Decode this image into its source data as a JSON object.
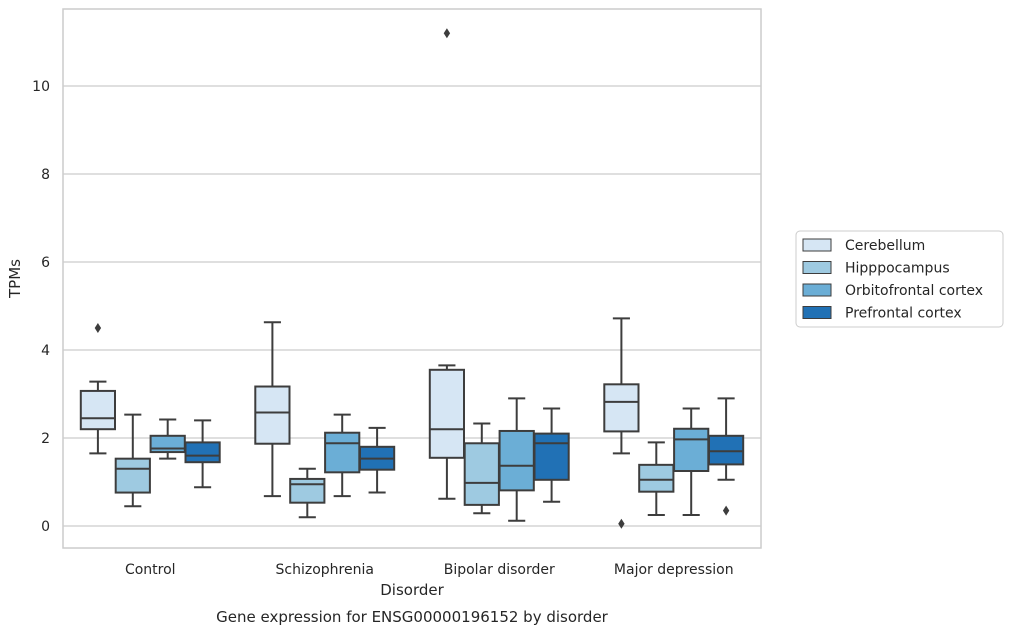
{
  "chart_data": {
    "type": "box",
    "caption": "Gene expression for ENSG00000196152 by disorder",
    "xlabel": "Disorder",
    "ylabel": "TPMs",
    "ylim": [
      -0.5,
      11.75
    ],
    "yticks": [
      0,
      2,
      4,
      6,
      8,
      10
    ],
    "grid": "horizontal",
    "legend_position": "right",
    "categories": [
      "Control",
      "Schizophrenia",
      "Bipolar disorder",
      "Major depression"
    ],
    "series": [
      {
        "name": "Cerebellum",
        "color": "#d6e6f4",
        "boxes": [
          {
            "whislo": 1.65,
            "q1": 2.2,
            "med": 2.45,
            "q3": 3.07,
            "whishi": 3.28,
            "fliers": [
              4.5
            ]
          },
          {
            "whislo": 0.68,
            "q1": 1.87,
            "med": 2.58,
            "q3": 3.17,
            "whishi": 4.63,
            "fliers": []
          },
          {
            "whislo": 0.62,
            "q1": 1.55,
            "med": 2.2,
            "q3": 3.55,
            "whishi": 3.65,
            "fliers": [
              11.2
            ]
          },
          {
            "whislo": 1.65,
            "q1": 2.15,
            "med": 2.82,
            "q3": 3.22,
            "whishi": 4.72,
            "fliers": []
          }
        ]
      },
      {
        "name": "Hipppocampus",
        "color": "#9ecae1",
        "boxes": [
          {
            "whislo": 0.45,
            "q1": 0.76,
            "med": 1.3,
            "q3": 1.53,
            "whishi": 2.53,
            "fliers": []
          },
          {
            "whislo": 0.2,
            "q1": 0.53,
            "med": 0.95,
            "q3": 1.07,
            "whishi": 1.3,
            "fliers": []
          },
          {
            "whislo": 0.29,
            "q1": 0.48,
            "med": 0.98,
            "q3": 1.88,
            "whishi": 2.33,
            "fliers": []
          },
          {
            "whislo": 0.25,
            "q1": 0.78,
            "med": 1.05,
            "q3": 1.39,
            "whishi": 1.9,
            "fliers": []
          }
        ]
      },
      {
        "name": "Orbitofrontal cortex",
        "color": "#6baed6",
        "boxes": [
          {
            "whislo": 1.53,
            "q1": 1.68,
            "med": 1.76,
            "q3": 2.05,
            "whishi": 2.42,
            "fliers": []
          },
          {
            "whislo": 0.68,
            "q1": 1.22,
            "med": 1.88,
            "q3": 2.12,
            "whishi": 2.53,
            "fliers": []
          },
          {
            "whislo": 0.12,
            "q1": 0.81,
            "med": 1.37,
            "q3": 2.16,
            "whishi": 2.9,
            "fliers": []
          },
          {
            "whislo": 0.25,
            "q1": 1.25,
            "med": 1.97,
            "q3": 2.21,
            "whishi": 2.67,
            "fliers": []
          }
        ]
      },
      {
        "name": "Prefrontal cortex",
        "color": "#2171b5",
        "boxes": [
          {
            "whislo": 0.88,
            "q1": 1.45,
            "med": 1.6,
            "q3": 1.9,
            "whishi": 2.4,
            "fliers": []
          },
          {
            "whislo": 0.76,
            "q1": 1.28,
            "med": 1.53,
            "q3": 1.8,
            "whishi": 2.23,
            "fliers": []
          },
          {
            "whislo": 0.55,
            "q1": 1.05,
            "med": 1.88,
            "q3": 2.1,
            "whishi": 2.67,
            "fliers": []
          },
          {
            "whislo": 1.05,
            "q1": 1.4,
            "med": 1.7,
            "q3": 2.05,
            "whishi": 2.9,
            "fliers": [
              0.35
            ]
          }
        ]
      }
    ],
    "fliers_extra": [
      {
        "category": 3,
        "series": 0,
        "value": 0.05
      }
    ]
  }
}
